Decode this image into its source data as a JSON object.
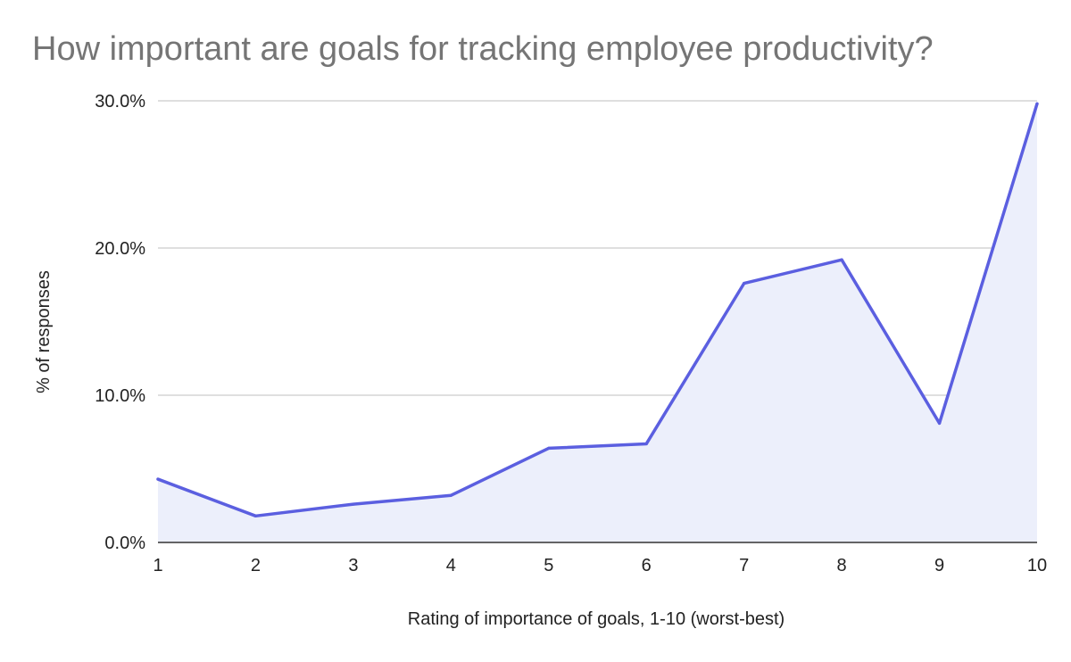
{
  "chart_data": {
    "type": "area",
    "title": "How important are goals for tracking employee productivity?",
    "xlabel": "Rating of importance of goals, 1-10 (worst-best)",
    "ylabel": "% of responses",
    "categories": [
      "1",
      "2",
      "3",
      "4",
      "5",
      "6",
      "7",
      "8",
      "9",
      "10"
    ],
    "series": [
      {
        "values": [
          4.3,
          1.8,
          2.6,
          3.2,
          6.4,
          6.7,
          17.6,
          19.2,
          8.1,
          29.8
        ]
      }
    ],
    "ylim": [
      0,
      30
    ],
    "yticks": [
      "0.0%",
      "10.0%",
      "20.0%",
      "30.0%"
    ],
    "grid": true,
    "legend": "none",
    "colors": {
      "line": "#5b5fe0",
      "fill": "#eceffb",
      "grid": "#cccccc",
      "title": "#757575"
    }
  }
}
